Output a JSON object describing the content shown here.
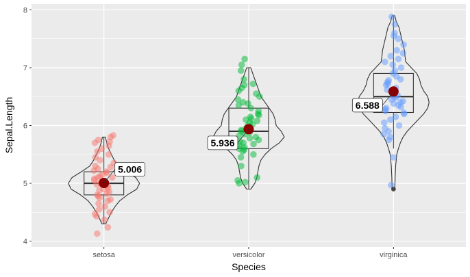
{
  "chart_data": {
    "type": "violin-box-jitter",
    "title": "",
    "xlabel": "Species",
    "ylabel": "Sepal.Length",
    "ylim": [
      3.9,
      8.1
    ],
    "yticks": [
      4,
      5,
      6,
      7,
      8
    ],
    "categories": [
      "setosa",
      "versicolor",
      "virginica"
    ],
    "colors": {
      "setosa": "#F8766D",
      "versicolor": "#00BA38",
      "virginica": "#619CFF",
      "mean": "#8B0000",
      "panel": "#EBEBEB",
      "grid": "#FFFFFF"
    },
    "groups": [
      {
        "name": "setosa",
        "mean": 5.006,
        "mean_label": "5.006",
        "box": {
          "min": 4.3,
          "q1": 4.8,
          "median": 5.0,
          "q3": 5.2,
          "max": 5.8
        },
        "outliers": [],
        "density": [
          [
            4.3,
            0.1
          ],
          [
            4.4,
            0.25
          ],
          [
            4.5,
            0.4
          ],
          [
            4.6,
            0.6
          ],
          [
            4.7,
            0.85
          ],
          [
            4.8,
            1.25
          ],
          [
            4.9,
            1.75
          ],
          [
            5.0,
            1.9
          ],
          [
            5.1,
            1.7
          ],
          [
            5.2,
            1.2
          ],
          [
            5.3,
            0.75
          ],
          [
            5.4,
            0.55
          ],
          [
            5.5,
            0.4
          ],
          [
            5.6,
            0.25
          ],
          [
            5.7,
            0.15
          ],
          [
            5.8,
            0.08
          ]
        ],
        "points": [
          4.24,
          4.13,
          4.37,
          4.43,
          4.47,
          4.5,
          4.55,
          4.6,
          4.65,
          4.7,
          4.72,
          4.75,
          4.78,
          4.8,
          4.82,
          4.85,
          4.88,
          4.9,
          4.92,
          4.95,
          4.97,
          5.0,
          5.0,
          5.02,
          5.05,
          5.08,
          5.1,
          5.12,
          5.15,
          5.18,
          5.2,
          5.22,
          5.25,
          5.28,
          5.3,
          5.35,
          5.4,
          5.45,
          5.5,
          5.55,
          5.6,
          5.65,
          5.7,
          5.72,
          5.75,
          5.8,
          5.83,
          5.0,
          4.98,
          5.1
        ]
      },
      {
        "name": "versicolor",
        "mean": 5.936,
        "mean_label": "5.936",
        "box": {
          "min": 4.9,
          "q1": 5.6,
          "median": 5.9,
          "q3": 6.3,
          "max": 7.0
        },
        "outliers": [],
        "density": [
          [
            4.9,
            0.1
          ],
          [
            5.0,
            0.3
          ],
          [
            5.1,
            0.4
          ],
          [
            5.2,
            0.45
          ],
          [
            5.3,
            0.5
          ],
          [
            5.4,
            0.6
          ],
          [
            5.5,
            0.8
          ],
          [
            5.6,
            1.1
          ],
          [
            5.7,
            1.5
          ],
          [
            5.8,
            1.75
          ],
          [
            5.9,
            1.6
          ],
          [
            6.0,
            1.35
          ],
          [
            6.1,
            1.3
          ],
          [
            6.2,
            1.2
          ],
          [
            6.3,
            1.0
          ],
          [
            6.4,
            0.8
          ],
          [
            6.5,
            0.6
          ],
          [
            6.6,
            0.5
          ],
          [
            6.7,
            0.4
          ],
          [
            6.8,
            0.3
          ],
          [
            6.9,
            0.2
          ],
          [
            7.0,
            0.1
          ]
        ],
        "points": [
          5.0,
          5.02,
          5.05,
          5.1,
          5.3,
          5.45,
          5.5,
          5.55,
          5.58,
          5.6,
          5.62,
          5.65,
          5.68,
          5.7,
          5.72,
          5.75,
          5.78,
          5.8,
          5.82,
          5.85,
          5.88,
          5.9,
          5.92,
          5.95,
          5.97,
          6.0,
          6.02,
          6.05,
          6.08,
          6.1,
          6.12,
          6.15,
          6.18,
          6.2,
          6.25,
          6.3,
          6.35,
          6.38,
          6.4,
          6.45,
          6.5,
          6.55,
          6.6,
          6.65,
          6.7,
          6.72,
          6.8,
          6.95,
          7.05,
          7.15
        ]
      },
      {
        "name": "virginica",
        "mean": 6.588,
        "mean_label": "6.588",
        "box": {
          "min": 5.6,
          "q1": 6.225,
          "median": 6.5,
          "q3": 6.9,
          "max": 7.9
        },
        "outliers": [
          4.9
        ],
        "density": [
          [
            4.9,
            0.05
          ],
          [
            5.1,
            0.06
          ],
          [
            5.3,
            0.08
          ],
          [
            5.5,
            0.12
          ],
          [
            5.6,
            0.18
          ],
          [
            5.7,
            0.25
          ],
          [
            5.8,
            0.35
          ],
          [
            5.9,
            0.5
          ],
          [
            6.0,
            0.7
          ],
          [
            6.1,
            0.9
          ],
          [
            6.2,
            1.1
          ],
          [
            6.3,
            1.25
          ],
          [
            6.4,
            1.3
          ],
          [
            6.5,
            1.25
          ],
          [
            6.6,
            1.1
          ],
          [
            6.7,
            1.0
          ],
          [
            6.8,
            0.95
          ],
          [
            6.9,
            0.85
          ],
          [
            7.0,
            0.65
          ],
          [
            7.1,
            0.45
          ],
          [
            7.2,
            0.42
          ],
          [
            7.3,
            0.4
          ],
          [
            7.4,
            0.35
          ],
          [
            7.5,
            0.3
          ],
          [
            7.6,
            0.25
          ],
          [
            7.7,
            0.2
          ],
          [
            7.8,
            0.1
          ],
          [
            7.9,
            0.05
          ]
        ],
        "points": [
          4.97,
          5.45,
          5.75,
          5.8,
          5.85,
          5.9,
          5.95,
          6.0,
          6.05,
          6.1,
          6.15,
          6.2,
          6.22,
          6.25,
          6.28,
          6.3,
          6.32,
          6.35,
          6.38,
          6.4,
          6.42,
          6.45,
          6.48,
          6.5,
          6.52,
          6.55,
          6.6,
          6.62,
          6.65,
          6.7,
          6.72,
          6.75,
          6.78,
          6.8,
          6.85,
          6.9,
          6.95,
          7.0,
          7.05,
          7.1,
          7.15,
          7.2,
          7.25,
          7.3,
          7.4,
          7.5,
          7.55,
          7.6,
          7.75,
          7.88
        ]
      }
    ]
  }
}
